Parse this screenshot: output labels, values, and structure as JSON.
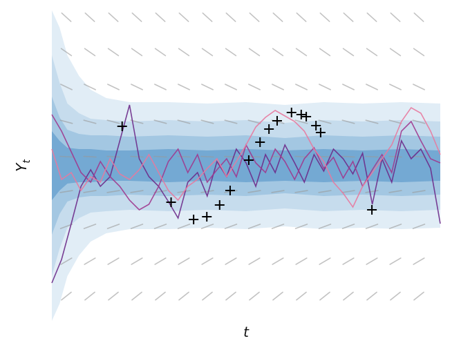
{
  "chart_data": {
    "type": "fan",
    "xlabel": "t",
    "ylabel": {
      "text": "Y",
      "subscript": "t"
    },
    "xlim": [
      0,
      100
    ],
    "ylim": [
      -11.25,
      11.25
    ],
    "band_x": [
      0,
      2,
      4,
      7,
      10,
      14,
      20,
      30,
      40,
      50,
      60,
      70,
      80,
      90,
      100
    ],
    "bands": [
      {
        "color": "#e1edf6",
        "upper": [
          11.25,
          10,
          8,
          6.5,
          5.5,
          4.9,
          4.6,
          4.6,
          4.5,
          4.6,
          4.4,
          4.6,
          4.5,
          4.6,
          4.5
        ],
        "lower": [
          -11.25,
          -10,
          -8,
          -6.5,
          -5.5,
          -4.9,
          -4.6,
          -4.6,
          -4.5,
          -4.6,
          -4.4,
          -4.6,
          -4.5,
          -4.6,
          -4.5
        ]
      },
      {
        "color": "#c6dced",
        "upper": [
          8,
          6,
          4.5,
          3.8,
          3.4,
          3.3,
          3.2,
          3.3,
          3.2,
          3.3,
          3.1,
          3.3,
          3.2,
          3.3,
          3.2
        ],
        "lower": [
          -8,
          -6,
          -4.5,
          -3.8,
          -3.4,
          -3.3,
          -3.2,
          -3.3,
          -3.2,
          -3.3,
          -3.1,
          -3.3,
          -3.2,
          -3.3,
          -3.2
        ]
      },
      {
        "color": "#a3c7e2",
        "upper": [
          5,
          3.5,
          2.6,
          2.3,
          2.2,
          2.2,
          2.1,
          2.2,
          2.1,
          2.2,
          2,
          2.2,
          2.1,
          2.2,
          2.1
        ],
        "lower": [
          -5,
          -3.5,
          -2.6,
          -2.3,
          -2.2,
          -2.2,
          -2.1,
          -2.2,
          -2.1,
          -2.2,
          -2,
          -2.2,
          -2.1,
          -2.2,
          -2.1
        ]
      },
      {
        "color": "#74a9d3",
        "upper": [
          2.5,
          1.8,
          1.3,
          1.2,
          1.2,
          1.1,
          1.1,
          1.2,
          1.1,
          1.2,
          1.1,
          1.2,
          1.1,
          1.2,
          1.1
        ],
        "lower": [
          -2.5,
          -1.8,
          -1.3,
          -1.2,
          -1.2,
          -1.1,
          -1.1,
          -1.2,
          -1.1,
          -1.2,
          -1.1,
          -1.2,
          -1.1,
          -1.2,
          -1.1
        ]
      }
    ],
    "x": [
      0,
      2.5,
      5,
      7.5,
      10,
      12.5,
      15,
      17.5,
      20,
      22.5,
      25,
      27.5,
      30,
      32.5,
      35,
      37.5,
      40,
      42.5,
      45,
      47.5,
      50,
      52.5,
      55,
      57.5,
      60,
      62.5,
      65,
      67.5,
      70,
      72.5,
      75,
      77.5,
      80,
      82.5,
      85,
      87.5,
      90,
      92.5,
      95,
      97.5,
      100
    ],
    "series": [
      {
        "color": "#6d2a8a",
        "values": [
          -8.5,
          -6.8,
          -4.2,
          -1.5,
          -0.3,
          -1.5,
          -0.8,
          1.8,
          4.4,
          0.5,
          -0.8,
          -1.5,
          -2.6,
          -3.8,
          -1.2,
          -0.5,
          -2.2,
          0.3,
          -0.8,
          1.2,
          0.2,
          -1.5,
          0.8,
          -0.5,
          1.5,
          0.2,
          -1.2,
          0.8,
          -0.4,
          1.2,
          0.5,
          -0.6,
          0.9,
          -2.8,
          0.5,
          -1.2,
          1.8,
          0.5,
          1.2,
          -0.2,
          -4.2
        ]
      },
      {
        "color": "#a0388e",
        "values": [
          3.7,
          2.5,
          1,
          -0.5,
          -1.2,
          0.3,
          -0.8,
          -1.5,
          -2.5,
          -3.2,
          -2.8,
          -1.5,
          0.3,
          1.2,
          -0.5,
          0.8,
          -1.2,
          -0.3,
          0.5,
          -0.8,
          1.5,
          0.2,
          -0.5,
          1.2,
          0.3,
          -1,
          0.5,
          1.3,
          -0.2,
          0.6,
          -0.9,
          0.3,
          -1.5,
          -0.3,
          0.8,
          -0.5,
          2.5,
          3.2,
          1.8,
          0.5,
          0.2
        ]
      },
      {
        "color": "#e8799f",
        "values": [
          1.2,
          -1,
          -0.5,
          -1.8,
          -0.8,
          -1.2,
          0.5,
          -0.6,
          -1,
          -0.3,
          0.8,
          -0.5,
          -1.8,
          -2.5,
          -1.5,
          -1,
          -0.2,
          0.5,
          -0.8,
          0.3,
          1.5,
          2.8,
          3.5,
          4,
          3.6,
          3.2,
          2.5,
          1.2,
          0.3,
          -1.2,
          -2,
          -3,
          -1.5,
          -0.5,
          0.5,
          1.5,
          3.2,
          4.2,
          3.8,
          2.5,
          0.8
        ]
      }
    ],
    "markers": {
      "color": "#000000",
      "x": [
        18.1,
        30.7,
        36.5,
        39.9,
        43.2,
        45.9,
        50.7,
        53.6,
        55.9,
        58.0,
        61.7,
        64.2,
        65.5,
        68.0,
        69.2,
        82.4
      ],
      "y": [
        2.85,
        -2.65,
        -3.9,
        -3.7,
        -2.85,
        -1.8,
        0.4,
        1.7,
        2.65,
        3.25,
        3.85,
        3.7,
        3.55,
        2.9,
        2.4,
        -3.2
      ]
    }
  }
}
